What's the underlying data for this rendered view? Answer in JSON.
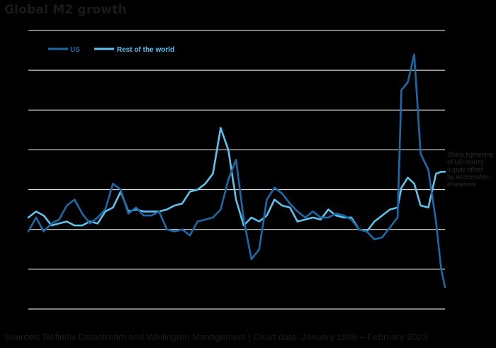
{
  "chart_data": {
    "type": "line",
    "title": "Global M2 growth",
    "xlabel": "",
    "ylabel": "",
    "x_range": [
      "1996-01",
      "2023-02"
    ],
    "ylim": [
      0,
      7
    ],
    "y_ticks": [
      0,
      1,
      2,
      3,
      4,
      5,
      6,
      7
    ],
    "grid": true,
    "legend_position": "top-left",
    "series": [
      {
        "name": "US",
        "color": "#1b6aa8",
        "points": [
          [
            "1996-01",
            1.95
          ],
          [
            "1996-07",
            2.3
          ],
          [
            "1997-01",
            1.95
          ],
          [
            "1997-07",
            2.15
          ],
          [
            "1998-01",
            2.25
          ],
          [
            "1998-07",
            2.6
          ],
          [
            "1999-01",
            2.75
          ],
          [
            "1999-07",
            2.4
          ],
          [
            "2000-01",
            2.15
          ],
          [
            "2000-07",
            2.3
          ],
          [
            "2001-01",
            2.5
          ],
          [
            "2001-07",
            3.15
          ],
          [
            "2002-01",
            3.0
          ],
          [
            "2002-07",
            2.4
          ],
          [
            "2003-01",
            2.55
          ],
          [
            "2003-07",
            2.35
          ],
          [
            "2004-01",
            2.35
          ],
          [
            "2004-07",
            2.45
          ],
          [
            "2005-01",
            2.0
          ],
          [
            "2005-07",
            1.95
          ],
          [
            "2006-01",
            2.0
          ],
          [
            "2006-07",
            1.85
          ],
          [
            "2007-01",
            2.2
          ],
          [
            "2007-07",
            2.25
          ],
          [
            "2008-01",
            2.3
          ],
          [
            "2008-07",
            2.5
          ],
          [
            "2009-01",
            3.25
          ],
          [
            "2009-07",
            3.75
          ],
          [
            "2010-01",
            2.25
          ],
          [
            "2010-07",
            1.25
          ],
          [
            "2011-01",
            1.5
          ],
          [
            "2011-07",
            2.75
          ],
          [
            "2012-01",
            3.05
          ],
          [
            "2012-07",
            2.9
          ],
          [
            "2013-01",
            2.65
          ],
          [
            "2013-07",
            2.45
          ],
          [
            "2014-01",
            2.3
          ],
          [
            "2014-07",
            2.45
          ],
          [
            "2015-01",
            2.3
          ],
          [
            "2015-07",
            2.3
          ],
          [
            "2016-01",
            2.4
          ],
          [
            "2016-07",
            2.35
          ],
          [
            "2017-01",
            2.25
          ],
          [
            "2017-07",
            2.0
          ],
          [
            "2018-01",
            1.95
          ],
          [
            "2018-07",
            1.75
          ],
          [
            "2019-01",
            1.8
          ],
          [
            "2019-07",
            2.05
          ],
          [
            "2020-01",
            2.3
          ],
          [
            "2020-04",
            5.5
          ],
          [
            "2020-09",
            5.7
          ],
          [
            "2021-02",
            6.4
          ],
          [
            "2021-07",
            3.9
          ],
          [
            "2022-01",
            3.5
          ],
          [
            "2022-07",
            2.2
          ],
          [
            "2022-11",
            1.0
          ],
          [
            "2023-02",
            0.55
          ]
        ]
      },
      {
        "name": "Rest of the world",
        "color": "#5ec3ec",
        "points": [
          [
            "1996-01",
            2.3
          ],
          [
            "1996-07",
            2.45
          ],
          [
            "1997-01",
            2.35
          ],
          [
            "1997-07",
            2.1
          ],
          [
            "1998-01",
            2.15
          ],
          [
            "1998-07",
            2.2
          ],
          [
            "1999-01",
            2.1
          ],
          [
            "1999-07",
            2.1
          ],
          [
            "2000-01",
            2.2
          ],
          [
            "2000-07",
            2.15
          ],
          [
            "2001-01",
            2.45
          ],
          [
            "2001-07",
            2.55
          ],
          [
            "2002-01",
            2.95
          ],
          [
            "2002-07",
            2.45
          ],
          [
            "2003-01",
            2.5
          ],
          [
            "2003-07",
            2.45
          ],
          [
            "2004-01",
            2.45
          ],
          [
            "2004-07",
            2.45
          ],
          [
            "2005-01",
            2.5
          ],
          [
            "2005-07",
            2.6
          ],
          [
            "2006-01",
            2.65
          ],
          [
            "2006-07",
            2.95
          ],
          [
            "2007-01",
            3.0
          ],
          [
            "2007-07",
            3.15
          ],
          [
            "2008-01",
            3.4
          ],
          [
            "2008-07",
            4.55
          ],
          [
            "2009-01",
            4.0
          ],
          [
            "2009-07",
            2.75
          ],
          [
            "2010-01",
            2.1
          ],
          [
            "2010-07",
            2.3
          ],
          [
            "2011-01",
            2.2
          ],
          [
            "2011-07",
            2.35
          ],
          [
            "2012-01",
            2.75
          ],
          [
            "2012-07",
            2.6
          ],
          [
            "2013-01",
            2.55
          ],
          [
            "2013-07",
            2.2
          ],
          [
            "2014-01",
            2.25
          ],
          [
            "2014-07",
            2.3
          ],
          [
            "2015-01",
            2.25
          ],
          [
            "2015-07",
            2.5
          ],
          [
            "2016-01",
            2.35
          ],
          [
            "2016-07",
            2.3
          ],
          [
            "2017-01",
            2.3
          ],
          [
            "2017-07",
            2.0
          ],
          [
            "2018-01",
            1.95
          ],
          [
            "2018-07",
            2.2
          ],
          [
            "2019-01",
            2.35
          ],
          [
            "2019-07",
            2.5
          ],
          [
            "2020-01",
            2.55
          ],
          [
            "2020-04",
            3.05
          ],
          [
            "2020-09",
            3.3
          ],
          [
            "2021-02",
            3.15
          ],
          [
            "2021-07",
            2.6
          ],
          [
            "2022-01",
            2.55
          ],
          [
            "2022-07",
            3.4
          ],
          [
            "2022-11",
            3.45
          ],
          [
            "2023-02",
            3.45
          ]
        ]
      }
    ],
    "annotations": [
      {
        "lines": [
          "Sharp tightening",
          "of US money",
          "supply offset",
          "by acceleration",
          "elsewhere"
        ],
        "placement": "right"
      }
    ]
  },
  "footer": {
    "source": "Sources: Refinitiv Datastream and Wellington Management  |  Chart data: January 1996 – February 2023"
  }
}
